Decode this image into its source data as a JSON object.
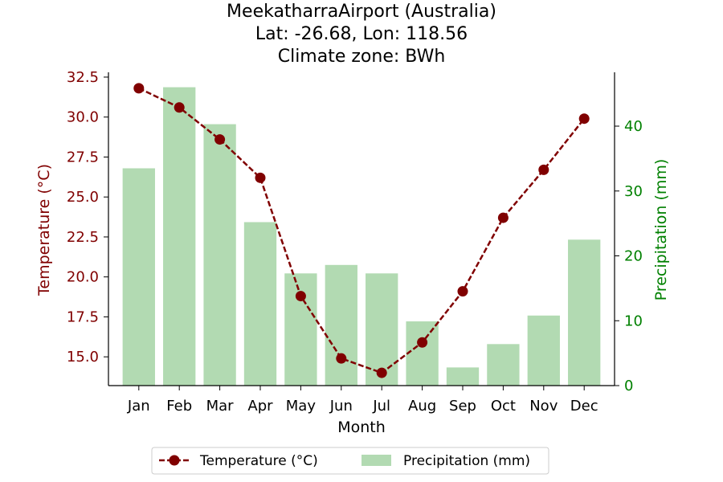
{
  "chart_data": {
    "type": "bar+line",
    "title_lines": [
      "MeekatharraAirport (Australia)",
      "Lat: -26.68, Lon: 118.56",
      "Climate zone: BWh"
    ],
    "xlabel": "Month",
    "categories": [
      "Jan",
      "Feb",
      "Mar",
      "Apr",
      "May",
      "Jun",
      "Jul",
      "Aug",
      "Sep",
      "Oct",
      "Nov",
      "Dec"
    ],
    "temperature": {
      "name": "Temperature (°C)",
      "ylabel": "Temperature (°C)",
      "color": "#800000",
      "values": [
        31.8,
        30.6,
        28.6,
        26.2,
        18.8,
        14.9,
        14.0,
        15.9,
        19.1,
        23.7,
        26.7,
        29.9
      ],
      "ylim": [
        13.2,
        32.8
      ],
      "ticks": [
        15.0,
        17.5,
        20.0,
        22.5,
        25.0,
        27.5,
        30.0,
        32.5
      ],
      "tick_labels": [
        "15.0",
        "17.5",
        "20.0",
        "22.5",
        "25.0",
        "27.5",
        "30.0",
        "32.5"
      ]
    },
    "precipitation": {
      "name": "Precipitation (mm)",
      "ylabel": "Precipitation (mm)",
      "color": "#b2dab2",
      "axis_color": "#008000",
      "values": [
        33.5,
        46.0,
        40.3,
        25.2,
        17.3,
        18.6,
        17.3,
        9.9,
        2.8,
        6.4,
        10.8,
        22.5
      ],
      "ylim": [
        0,
        48.3
      ],
      "ticks": [
        0,
        10,
        20,
        30,
        40
      ],
      "tick_labels": [
        "0",
        "10",
        "20",
        "30",
        "40"
      ]
    },
    "legend": {
      "placement": "bottom-center",
      "entries": [
        "Temperature (°C)",
        "Precipitation (mm)"
      ]
    }
  }
}
